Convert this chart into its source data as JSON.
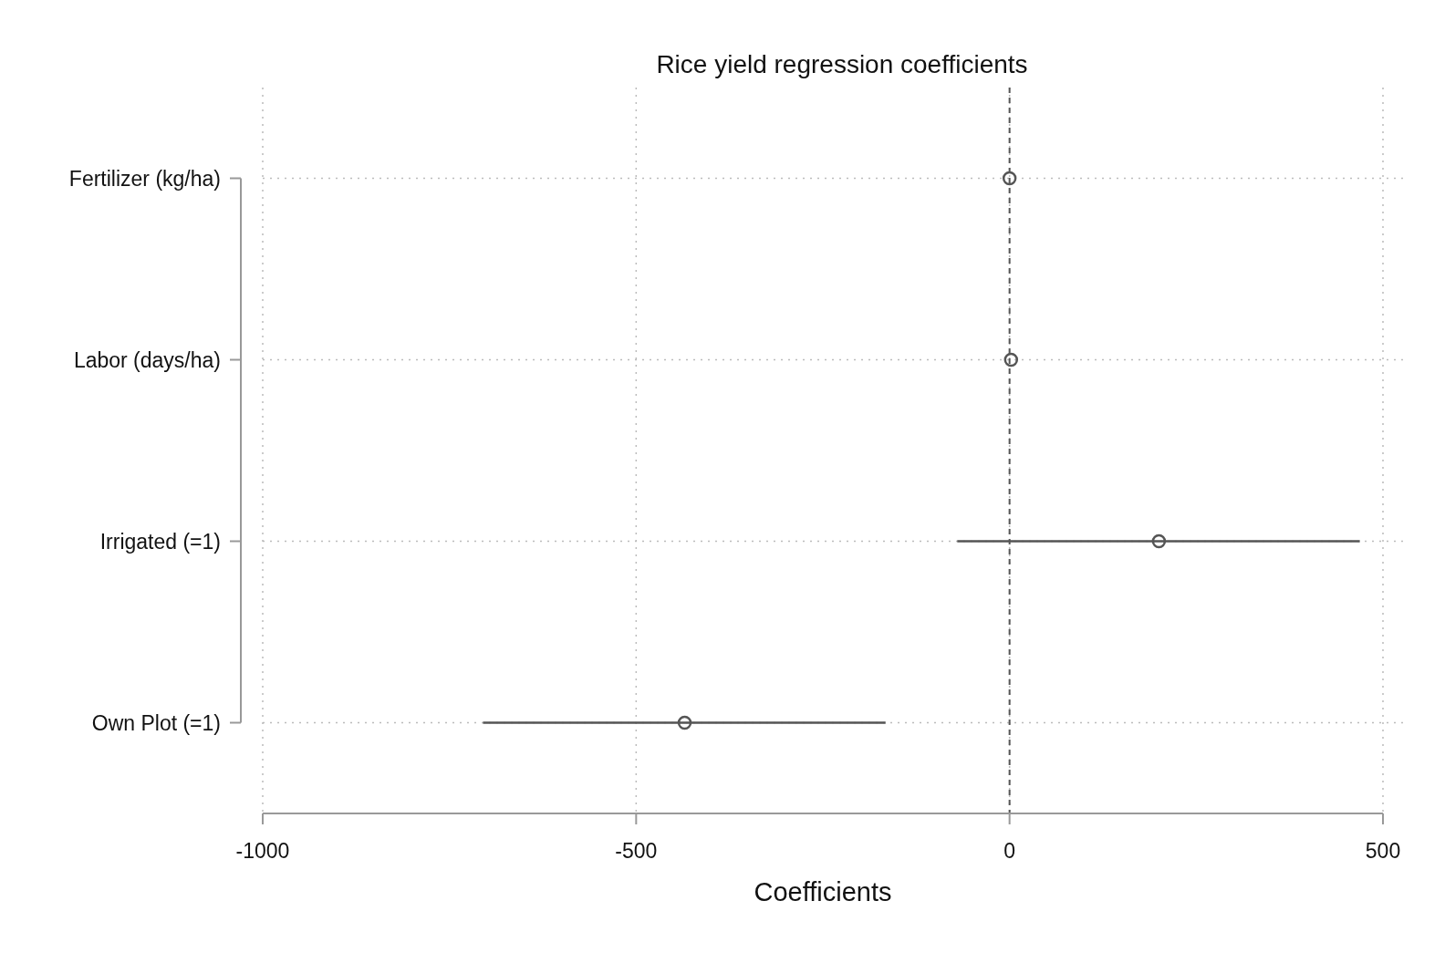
{
  "chart_data": {
    "type": "scatter",
    "title": "Rice yield regression coefficients",
    "xlabel": "Coefficients",
    "orientation": "horizontal",
    "categories": [
      "Fertilizer (kg/ha)",
      "Labor (days/ha)",
      "Irrigated (=1)",
      "Own Plot (=1)"
    ],
    "series": [
      {
        "color": "#555555",
        "values": [
          0,
          2,
          200,
          -435
        ],
        "errors": [
          null,
          null,
          [
            -70,
            469
          ],
          [
            -705,
            -166
          ]
        ]
      }
    ],
    "xlim": [
      -1000,
      500
    ],
    "xticks": [
      -1000,
      -500,
      0,
      500
    ],
    "grid": true,
    "marker": "circle",
    "ref_lines": [
      {
        "axis": "x",
        "value": 0,
        "color": "#555555",
        "line_style": "dashed"
      }
    ]
  }
}
